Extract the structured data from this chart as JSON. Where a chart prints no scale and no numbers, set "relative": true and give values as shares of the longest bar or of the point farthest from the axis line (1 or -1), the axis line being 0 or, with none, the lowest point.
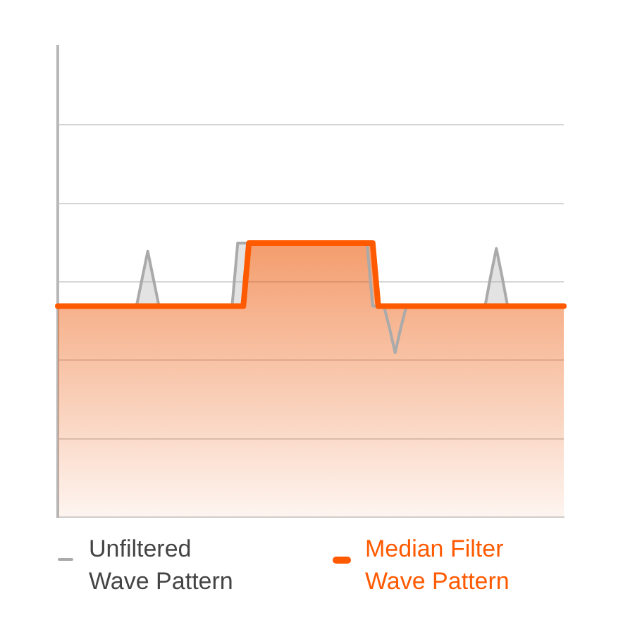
{
  "chart_data": {
    "type": "line",
    "relative": true,
    "categories": [
      null,
      null,
      null,
      null,
      null,
      null,
      null,
      null,
      null,
      null,
      null,
      null,
      null,
      null,
      null,
      null,
      null,
      null,
      null,
      null,
      null,
      null,
      null,
      null,
      null,
      null,
      null,
      null,
      null,
      null,
      null,
      null,
      null,
      null,
      null,
      null,
      null,
      null,
      null,
      null,
      null,
      null,
      null,
      null,
      null,
      null,
      null,
      null,
      null,
      null,
      null,
      null,
      null,
      null,
      null,
      null,
      null,
      null,
      null,
      null,
      null,
      null,
      null,
      null,
      null,
      null,
      null,
      null,
      null,
      null,
      null,
      null,
      null,
      null,
      null,
      null,
      null,
      null,
      null,
      null,
      null,
      null,
      null,
      null,
      null,
      null,
      null,
      null,
      null,
      null,
      null
    ],
    "series": [
      {
        "name": "Unfiltered Wave Pattern",
        "color": "#aaaaaa",
        "values": [
          null,
          null,
          null,
          null,
          null,
          null,
          null,
          null,
          null,
          null,
          null,
          null,
          null,
          null,
          0.77,
          0.87,
          0.97,
          0.87,
          0.77,
          null,
          null,
          null,
          null,
          null,
          null,
          null,
          null,
          null,
          null,
          null,
          null,
          0.77,
          1,
          1,
          1,
          null,
          null,
          null,
          null,
          null,
          null,
          null,
          null,
          null,
          null,
          null,
          null,
          null,
          null,
          null,
          null,
          null,
          null,
          null,
          null,
          1,
          0.77,
          0.77,
          0.77,
          0.69,
          0.6,
          0.69,
          0.77,
          null,
          null,
          null,
          null,
          null,
          null,
          null,
          null,
          null,
          null,
          null,
          null,
          null,
          0.77,
          0.88,
          0.98,
          0.88,
          0.77,
          null,
          null,
          null,
          null,
          null,
          null,
          null,
          null,
          null,
          null
        ]
      },
      {
        "name": "Median Filter Wave Pattern",
        "type": "area",
        "color": "#ff5a00",
        "values": [
          0.77,
          0.77,
          0.77,
          0.77,
          0.77,
          0.77,
          0.77,
          0.77,
          0.77,
          0.77,
          0.77,
          0.77,
          0.77,
          0.77,
          0.77,
          0.77,
          0.77,
          0.77,
          0.77,
          0.77,
          0.77,
          0.77,
          0.77,
          0.77,
          0.77,
          0.77,
          0.77,
          0.77,
          0.77,
          0.77,
          0.77,
          0.77,
          0.77,
          0.77,
          1,
          1,
          1,
          1,
          1,
          1,
          1,
          1,
          1,
          1,
          1,
          1,
          1,
          1,
          1,
          1,
          1,
          1,
          1,
          1,
          1,
          1,
          1,
          0.77,
          0.77,
          0.77,
          0.77,
          0.77,
          0.77,
          0.77,
          0.77,
          0.77,
          0.77,
          0.77,
          0.77,
          0.77,
          0.77,
          0.77,
          0.77,
          0.77,
          0.77,
          0.77,
          0.77,
          0.77,
          0.77,
          0.77,
          0.77,
          0.77,
          0.77,
          0.77,
          0.77,
          0.77,
          0.77,
          0.77,
          0.77,
          0.77,
          0.77
        ]
      }
    ],
    "grid": "y",
    "legend": "bottom",
    "tick_labels": false
  }
}
